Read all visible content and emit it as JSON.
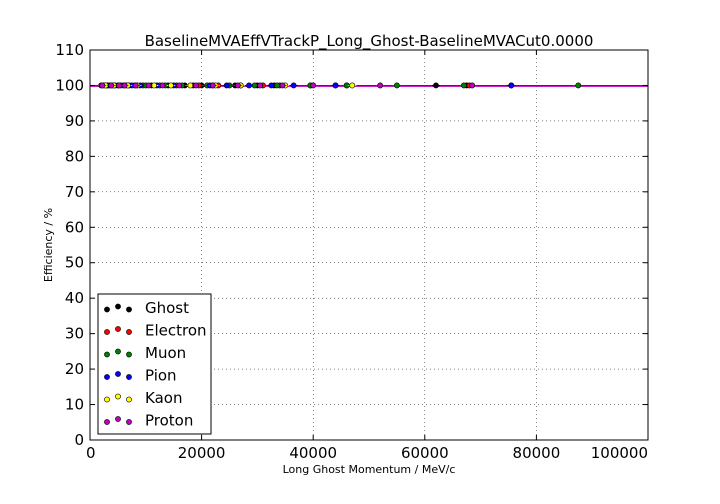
{
  "chart_data": {
    "type": "scatter",
    "title": "BaselineMVAEffVTrackP_Long_Ghost-BaselineMVACut0.0000",
    "xlabel": "Long Ghost Momentum / MeV/c",
    "ylabel": "Efficiency / %",
    "xlim": [
      0,
      100000
    ],
    "ylim": [
      0,
      110
    ],
    "x_ticks": [
      "0",
      "20000",
      "40000",
      "60000",
      "80000",
      "100000"
    ],
    "y_ticks": [
      "0",
      "10",
      "20",
      "30",
      "40",
      "50",
      "60",
      "70",
      "80",
      "90",
      "100",
      "110"
    ],
    "grid": true,
    "legend_position": "lower-left",
    "series": [
      {
        "name": "Ghost",
        "color": "#000000",
        "x": [
          2500,
          4000,
          6000,
          8000,
          11000,
          14000,
          17000,
          20000,
          22000,
          26000,
          30000,
          33000,
          39500,
          46000,
          62000,
          67500,
          75500
        ],
        "y": [
          100,
          100,
          100,
          100,
          100,
          100,
          100,
          100,
          100,
          100,
          100,
          100,
          100,
          100,
          100,
          100,
          100
        ]
      },
      {
        "name": "Electron",
        "color": "#ff0000",
        "x": [
          3000,
          5000,
          7000,
          9500,
          12500,
          15500,
          19500,
          23000,
          27000,
          31000,
          34000,
          44000,
          68000
        ],
        "y": [
          100,
          100,
          100,
          100,
          100,
          100,
          100,
          100,
          100,
          100,
          100,
          100,
          100
        ]
      },
      {
        "name": "Muon",
        "color": "#008000",
        "x": [
          3500,
          6500,
          10000,
          13500,
          16500,
          21000,
          25000,
          29500,
          33500,
          39500,
          46000,
          55000,
          67000,
          87500
        ],
        "y": [
          100,
          100,
          100,
          100,
          100,
          100,
          100,
          100,
          100,
          100,
          100,
          100,
          100,
          100
        ]
      },
      {
        "name": "Pion",
        "color": "#0000ff",
        "x": [
          2000,
          3200,
          4500,
          5500,
          7500,
          9000,
          12000,
          15000,
          18500,
          21500,
          24500,
          28500,
          32500,
          36500,
          44000,
          75500
        ],
        "y": [
          100,
          100,
          100,
          100,
          100,
          100,
          100,
          100,
          100,
          100,
          100,
          100,
          100,
          100,
          100,
          100
        ]
      },
      {
        "name": "Kaon",
        "color": "#ffff00",
        "x": [
          2800,
          4300,
          6800,
          8500,
          11500,
          14500,
          18000,
          22500,
          27000,
          35000,
          47000
        ],
        "y": [
          100,
          100,
          100,
          100,
          100,
          100,
          100,
          100,
          100,
          100,
          100
        ]
      },
      {
        "name": "Proton",
        "color": "#bf00bf",
        "x": [
          2200,
          3800,
          5200,
          6200,
          8200,
          10500,
          13000,
          16000,
          19000,
          22000,
          26500,
          30500,
          34500,
          40000,
          52000,
          68500
        ],
        "y": [
          100,
          100,
          100,
          100,
          100,
          100,
          100,
          100,
          100,
          100,
          100,
          100,
          100,
          100,
          100,
          100
        ]
      }
    ]
  }
}
